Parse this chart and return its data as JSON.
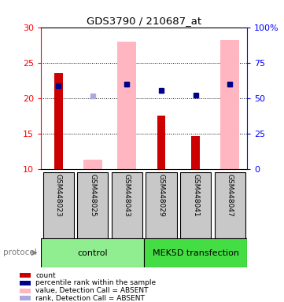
{
  "title": "GDS3790 / 210687_at",
  "samples": [
    "GSM448023",
    "GSM448025",
    "GSM448043",
    "GSM448029",
    "GSM448041",
    "GSM448047"
  ],
  "ylim_left": [
    10,
    30
  ],
  "ylim_right": [
    0,
    100
  ],
  "yticks_left": [
    10,
    15,
    20,
    25,
    30
  ],
  "yticks_right": [
    0,
    25,
    50,
    75,
    100
  ],
  "yticklabels_right": [
    "0",
    "25",
    "50",
    "75",
    "100%"
  ],
  "red_bars": [
    23.5,
    null,
    null,
    17.5,
    14.7,
    null
  ],
  "pink_bars": [
    null,
    11.3,
    28.0,
    null,
    null,
    28.2
  ],
  "blue_squares": [
    21.7,
    null,
    22.0,
    21.1,
    20.4,
    22.0
  ],
  "light_blue_squares": [
    null,
    20.3,
    22.0,
    null,
    null,
    22.0
  ],
  "red_color": "#CC0000",
  "pink_color": "#FFB6C1",
  "blue_color": "#00008B",
  "light_blue_color": "#AAAADD",
  "control_color": "#90EE90",
  "mek5d_color": "#44DD44",
  "gray_color": "#C8C8C8",
  "legend_items": [
    {
      "color": "#CC0000",
      "label": "count"
    },
    {
      "color": "#00008B",
      "label": "percentile rank within the sample"
    },
    {
      "color": "#FFB6C1",
      "label": "value, Detection Call = ABSENT"
    },
    {
      "color": "#AAAADD",
      "label": "rank, Detection Call = ABSENT"
    }
  ]
}
